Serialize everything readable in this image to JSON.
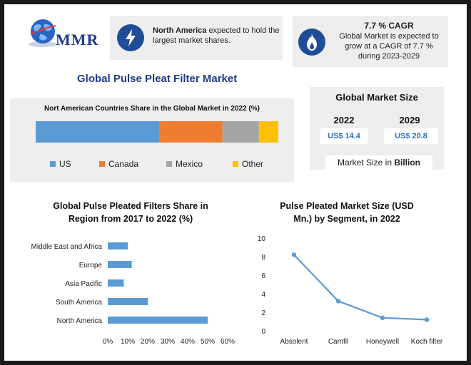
{
  "logo": {
    "text": "MMR",
    "icon": "globe-icon"
  },
  "header_cards": [
    {
      "icon": "lightning-icon",
      "bold": "North America",
      "rest": " expected to hold the",
      "line2": "largest market shares."
    },
    {
      "icon": "flame-icon",
      "title": "7.7 % CAGR",
      "line1": "Global Market is expected to",
      "line2": "grow at a CAGR of 7.7 %",
      "line3": "during 2023-2029"
    }
  ],
  "main_title": "Global Pulse Pleat Filter Market",
  "market_size": {
    "title": "Global Market Size",
    "years": [
      "2022",
      "2029"
    ],
    "values": [
      "US$ 14.4",
      "US$ 20.8"
    ],
    "note_prefix": "Market Size in ",
    "note_bold": "Billion"
  },
  "colors": {
    "us": "#5b9bd5",
    "canada": "#ed7d31",
    "mexico": "#a5a5a5",
    "other": "#ffc000",
    "line": "#5b9bd5",
    "brand": "#1f4e96"
  },
  "chart_data": [
    {
      "type": "bar",
      "orientation": "horizontal-stacked",
      "title": "Nort American Countries Share in the Global Market in 2022 (%)",
      "series": [
        {
          "name": "US",
          "values": [
            51
          ]
        },
        {
          "name": "Canada",
          "values": [
            26
          ]
        },
        {
          "name": "Mexico",
          "values": [
            15
          ]
        },
        {
          "name": "Other",
          "values": [
            8
          ]
        }
      ],
      "legend": "bottom"
    },
    {
      "type": "bar",
      "orientation": "horizontal",
      "title_lines": [
        "Global Pulse Pleated Filters Share in",
        "Region from 2017 to 2022 (%)"
      ],
      "categories": [
        "Middle East and Africa",
        "Europe",
        "Asia Pacific",
        "South America",
        "North America"
      ],
      "values": [
        10,
        12,
        8,
        20,
        50
      ],
      "xlim": [
        0,
        60
      ],
      "xticks": [
        "0%",
        "10%",
        "20%",
        "30%",
        "40%",
        "50%",
        "60%"
      ]
    },
    {
      "type": "line",
      "title_lines": [
        "Pulse Pleated  Market Size (USD",
        "Mn.) by Segment, in 2022"
      ],
      "categories": [
        "Absolent",
        "Camfil",
        "Honeywell",
        "Koch filter"
      ],
      "values": [
        8.2,
        3.2,
        1.4,
        1.2
      ],
      "ylim": [
        0,
        10
      ],
      "yticks": [
        "0",
        "2",
        "4",
        "6",
        "8",
        "10"
      ]
    }
  ]
}
